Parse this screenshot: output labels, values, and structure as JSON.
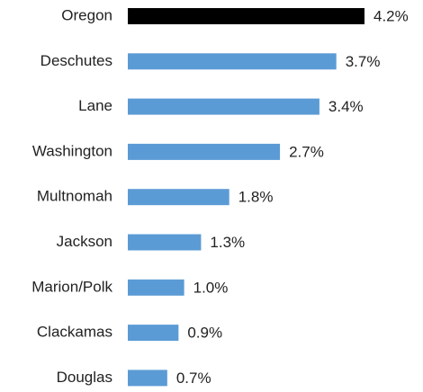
{
  "chart_data": {
    "type": "bar",
    "orientation": "horizontal",
    "categories": [
      "Oregon",
      "Deschutes",
      "Lane",
      "Washington",
      "Multnomah",
      "Jackson",
      "Marion/Polk",
      "Clackamas",
      "Douglas"
    ],
    "values": [
      4.2,
      3.7,
      3.4,
      2.7,
      1.8,
      1.3,
      1.0,
      0.9,
      0.7
    ],
    "value_labels": [
      "4.2%",
      "3.7%",
      "3.4%",
      "2.7%",
      "1.8%",
      "1.3%",
      "1.0%",
      "0.9%",
      "0.7%"
    ],
    "colors": [
      "#000000",
      "#5b9bd5",
      "#5b9bd5",
      "#5b9bd5",
      "#5b9bd5",
      "#5b9bd5",
      "#5b9bd5",
      "#5b9bd5",
      "#5b9bd5"
    ]
  }
}
